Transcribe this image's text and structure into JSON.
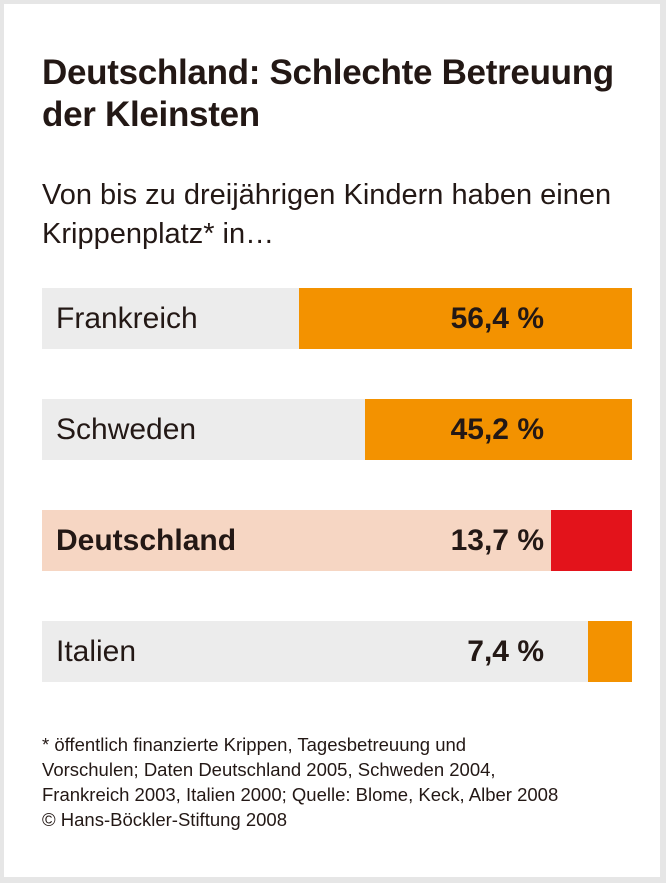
{
  "chart_data": {
    "type": "bar",
    "orientation": "horizontal",
    "title": "Deutschland: Schlechte Betreuung der Kleinsten",
    "subtitle": "Von bis zu dreijährigen Kindern haben einen Krippenplatz* in…",
    "categories": [
      "Frankreich",
      "Schweden",
      "Deutschland",
      "Italien"
    ],
    "values": [
      56.4,
      45.2,
      13.7,
      7.4
    ],
    "value_labels": [
      "56,4 %",
      "45,2 %",
      "13,7 %",
      "7,4 %"
    ],
    "xlim": [
      0,
      100
    ],
    "unit": "%",
    "highlight": "Deutschland",
    "colors": {
      "bar": "#f39200",
      "highlight_bar": "#e3131b",
      "track": "#ececec",
      "highlight_track": "#f6d6c3"
    },
    "grid": false,
    "footnote": [
      "* öffentlich finanzierte Krippen, Tagesbetreuung und",
      "Vorschulen; Daten Deutschland 2005, Schweden 2004,",
      "Frankreich 2003, Italien 2000; Quelle: Blome, Keck, Alber 2008",
      "© Hans-Böckler-Stiftung 2008"
    ]
  }
}
